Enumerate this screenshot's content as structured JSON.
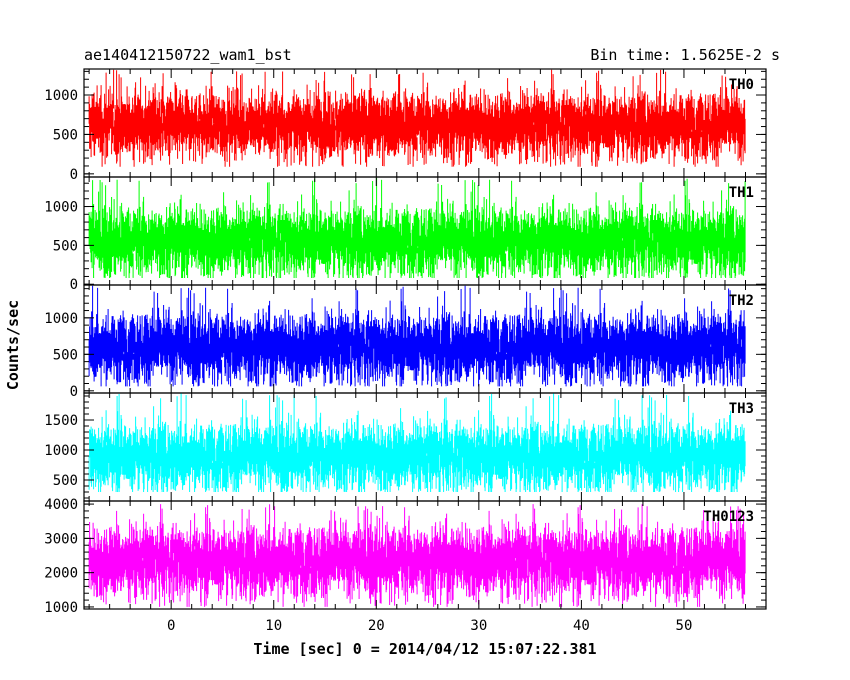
{
  "chart_data": {
    "type": "line",
    "title": "ae140412150722_wam1_bst",
    "subtitle": "Bin time: 1.5625E-2 s",
    "xlabel": "Time [sec] 0 = 2014/04/12 15:07:22.381",
    "ylabel": "Counts/sec",
    "xlim": [
      -8.5,
      58
    ],
    "x_range_data": [
      -8.0,
      56.0
    ],
    "bin_time_s": 0.015625,
    "x_ticks": [
      0,
      10,
      20,
      30,
      40,
      50
    ],
    "grid": false,
    "panels": [
      {
        "name": "TH0",
        "color": "#ff0000",
        "ylim": [
          -40,
          1330
        ],
        "y_ticks": [
          0,
          500,
          1000
        ],
        "approx_mean": 620,
        "approx_min": 90,
        "approx_max": 1320
      },
      {
        "name": "TH1",
        "color": "#00ff00",
        "ylim": [
          -10,
          1380
        ],
        "y_ticks": [
          0,
          500,
          1000
        ],
        "approx_mean": 560,
        "approx_min": 80,
        "approx_max": 1370
      },
      {
        "name": "TH2",
        "color": "#0000ff",
        "ylim": [
          -30,
          1450
        ],
        "y_ticks": [
          0,
          500,
          1000
        ],
        "approx_mean": 600,
        "approx_min": 60,
        "approx_max": 1440
      },
      {
        "name": "TH3",
        "color": "#00ffff",
        "ylim": [
          150,
          1950
        ],
        "y_ticks": [
          500,
          1000,
          1500
        ],
        "approx_mean": 900,
        "approx_min": 300,
        "approx_max": 1950
      },
      {
        "name": "TH0123",
        "color": "#ff00ff",
        "ylim": [
          940,
          4090
        ],
        "y_ticks": [
          1000,
          2000,
          3000,
          4000
        ],
        "approx_mean": 2350,
        "approx_min": 1000,
        "approx_max": 4000
      }
    ]
  }
}
